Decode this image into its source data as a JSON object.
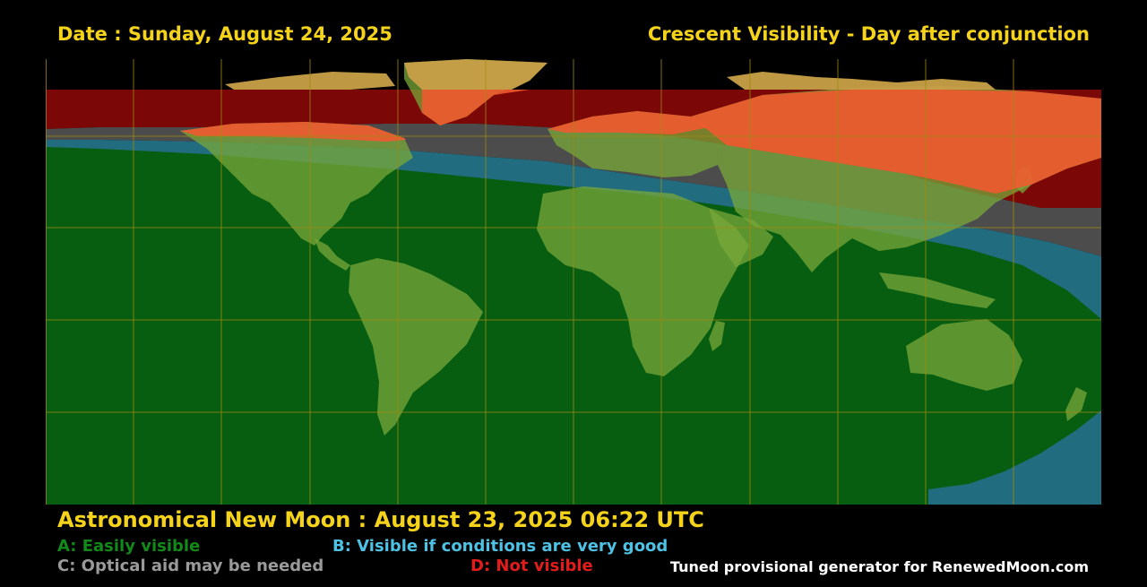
{
  "header": {
    "date_text": "Date : Sunday, August 24, 2025",
    "title_text": "Crescent Visibility - Day after conjunction"
  },
  "new_moon_text": "Astronomical New Moon : August 23, 2025 06:22 UTC",
  "legend": {
    "a": "A: Easily visible",
    "b": "B: Visible if conditions are very good",
    "c": "C: Optical aid may be needed",
    "d": "D: Not visible"
  },
  "credit": "Tuned provisional generator for RenewedMoon.com",
  "colors": {
    "text_yellow": "#f5d31b",
    "zone_a": "#075e10",
    "zone_b": "#226c7f",
    "zone_c": "#4c4c4c",
    "zone_d": "#7c0707",
    "legend_a": "#128a1a",
    "legend_b": "#4ec2e4",
    "legend_c": "#9a9a9a",
    "legend_d": "#e31b1b",
    "credit": "#ffffff",
    "grid": "#a08a10",
    "land": "#7aa83a",
    "land_cold": "#c9a048",
    "land_red": "#ef5a30"
  }
}
